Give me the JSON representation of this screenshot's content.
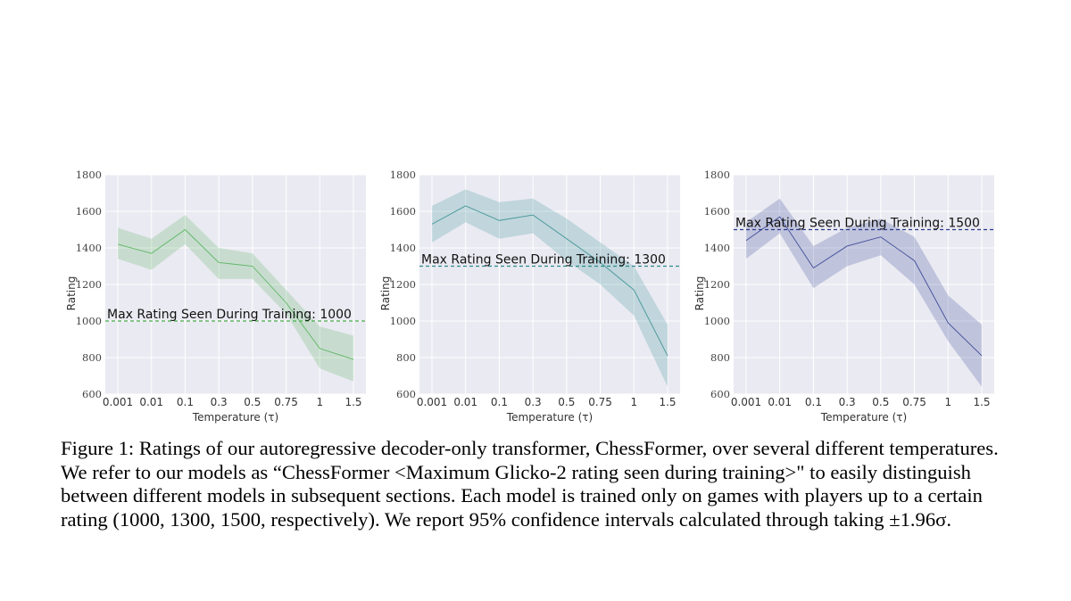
{
  "chart_data": [
    {
      "type": "line",
      "title": "",
      "xlabel": "Temperature (τ)",
      "ylabel": "Rating",
      "categories": [
        "0.001",
        "0.01",
        "0.1",
        "0.3",
        "0.5",
        "0.75",
        "1",
        "1.5"
      ],
      "yticks": [
        "600",
        "800",
        "1000",
        "1200",
        "1400",
        "1600",
        "1800"
      ],
      "ylim": [
        600,
        1800
      ],
      "series": [
        {
          "name": "ChessFormer 1000",
          "values": [
            1420,
            1370,
            1500,
            1320,
            1300,
            1100,
            850,
            790
          ],
          "lower": [
            1340,
            1280,
            1420,
            1230,
            1230,
            1040,
            740,
            670
          ],
          "upper": [
            1510,
            1450,
            1580,
            1400,
            1370,
            1170,
            970,
            920
          ]
        }
      ],
      "reference": {
        "value": 1000,
        "label": "Max Rating Seen During Training: 1000"
      },
      "color": "#4caf50",
      "grid": true
    },
    {
      "type": "line",
      "title": "",
      "xlabel": "Temperature (τ)",
      "ylabel": "Rating",
      "categories": [
        "0.001",
        "0.01",
        "0.1",
        "0.3",
        "0.5",
        "0.75",
        "1",
        "1.5"
      ],
      "yticks": [
        "600",
        "800",
        "1000",
        "1200",
        "1400",
        "1600",
        "1800"
      ],
      "ylim": [
        600,
        1800
      ],
      "series": [
        {
          "name": "ChessFormer 1300",
          "values": [
            1530,
            1630,
            1550,
            1580,
            1450,
            1320,
            1170,
            810
          ],
          "lower": [
            1430,
            1540,
            1450,
            1480,
            1330,
            1200,
            1030,
            640
          ],
          "upper": [
            1630,
            1720,
            1650,
            1670,
            1560,
            1430,
            1300,
            980
          ]
        }
      ],
      "reference": {
        "value": 1300,
        "label": "Max Rating Seen During Training: 1300"
      },
      "color": "#2e8b8b",
      "grid": true
    },
    {
      "type": "line",
      "title": "",
      "xlabel": "Temperature (τ)",
      "ylabel": "Rating",
      "categories": [
        "0.001",
        "0.01",
        "0.1",
        "0.3",
        "0.5",
        "0.75",
        "1",
        "1.5"
      ],
      "yticks": [
        "600",
        "800",
        "1000",
        "1200",
        "1400",
        "1600",
        "1800"
      ],
      "ylim": [
        600,
        1800
      ],
      "series": [
        {
          "name": "ChessFormer 1500",
          "values": [
            1440,
            1570,
            1290,
            1410,
            1460,
            1330,
            990,
            810
          ],
          "lower": [
            1340,
            1480,
            1180,
            1300,
            1360,
            1200,
            890,
            640
          ],
          "upper": [
            1540,
            1670,
            1410,
            1510,
            1560,
            1460,
            1140,
            980
          ]
        }
      ],
      "reference": {
        "value": 1500,
        "label": "Max Rating Seen During Training: 1500"
      },
      "color": "#2b3a8c",
      "grid": true
    }
  ],
  "caption": {
    "text": "Figure 1: Ratings of our autoregressive decoder-only transformer, ChessFormer, over several different temperatures. We refer to our models as “ChessFormer <Maximum Glicko-2 rating seen during training>\" to easily distinguish between different models in subsequent sections. Each model is trained only on games with players up to a certain rating (1000, 1300, 1500, respectively). We report 95% confidence intervals calculated through taking ±1.96σ."
  }
}
